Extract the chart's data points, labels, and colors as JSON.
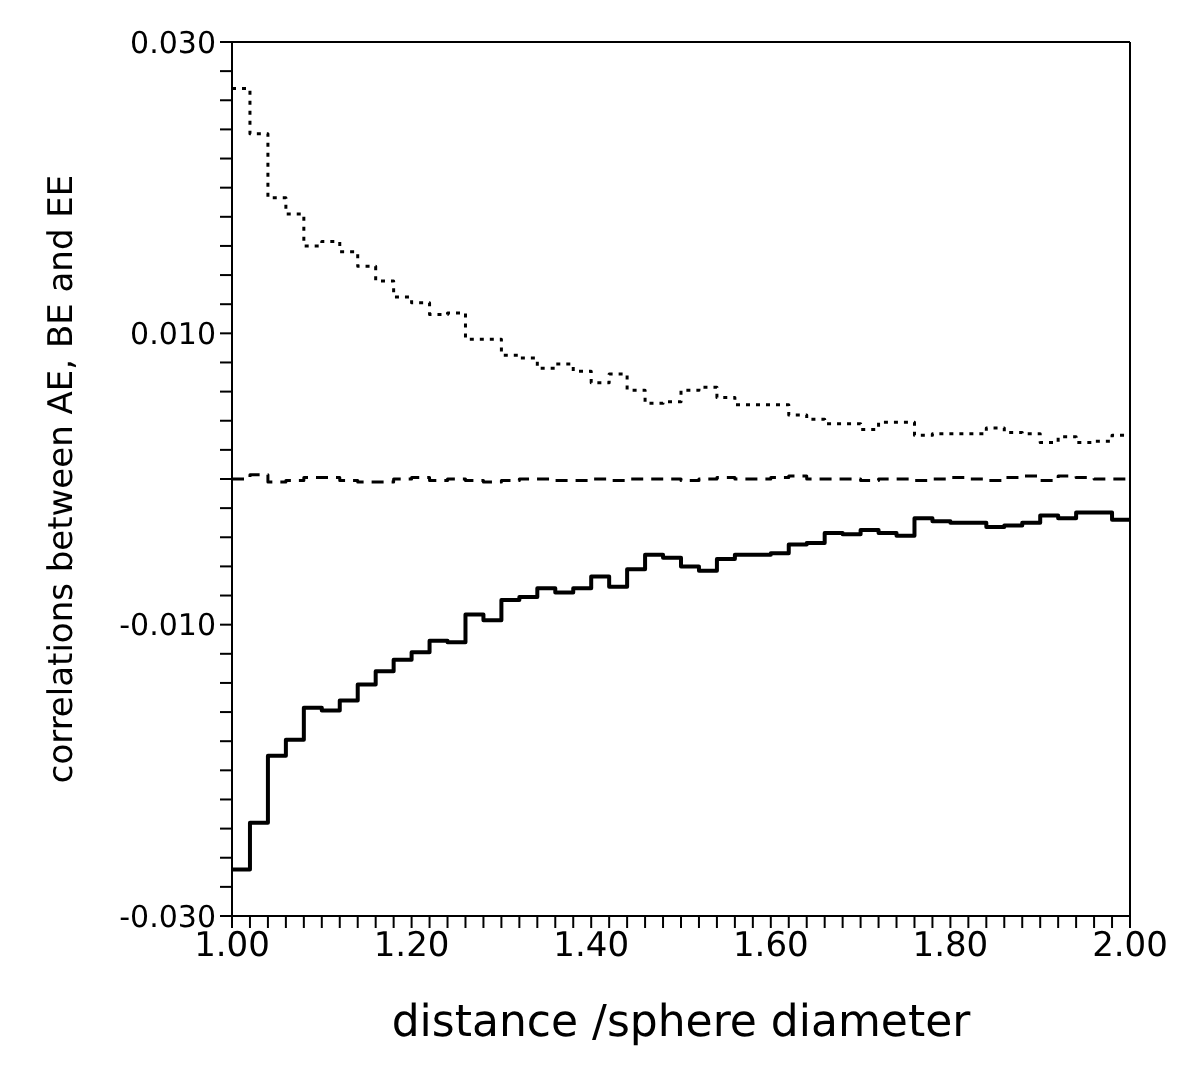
{
  "chart_data": {
    "type": "step",
    "xlabel": "distance /sphere diameter",
    "ylabel": "correlations between  AE, BE and EE",
    "x": [
      1.0,
      1.02,
      1.04,
      1.06,
      1.08,
      1.1,
      1.12,
      1.14,
      1.16,
      1.18,
      1.2,
      1.22,
      1.24,
      1.26,
      1.28,
      1.3,
      1.32,
      1.34,
      1.36,
      1.38,
      1.4,
      1.42,
      1.44,
      1.46,
      1.48,
      1.5,
      1.52,
      1.54,
      1.56,
      1.58,
      1.6,
      1.62,
      1.64,
      1.66,
      1.68,
      1.7,
      1.72,
      1.74,
      1.76,
      1.78,
      1.8,
      1.82,
      1.84,
      1.86,
      1.88,
      1.9,
      1.92,
      1.94,
      1.96,
      1.98,
      2.0
    ],
    "series": [
      {
        "color": "#000000",
        "line_style": "dotted",
        "values": [
          0.0268,
          0.0237,
          0.0193,
          0.0182,
          0.016,
          0.0163,
          0.0156,
          0.0146,
          0.0136,
          0.0125,
          0.0121,
          0.0113,
          0.0114,
          0.0096,
          0.0096,
          0.0085,
          0.0083,
          0.0076,
          0.0079,
          0.0074,
          0.0066,
          0.0072,
          0.0061,
          0.0052,
          0.0053,
          0.0061,
          0.0063,
          0.0056,
          0.0051,
          0.0051,
          0.0051,
          0.0044,
          0.0041,
          0.0038,
          0.0038,
          0.0034,
          0.0039,
          0.0039,
          0.003,
          0.0031,
          0.0031,
          0.0031,
          0.0035,
          0.0032,
          0.0031,
          0.0025,
          0.0029,
          0.0025,
          0.0026,
          0.003,
          0.003
        ]
      },
      {
        "color": "#000000",
        "line_style": "dashed",
        "values": [
          0.0,
          0.0003,
          -0.0002,
          -0.0001,
          0.0001,
          0.0001,
          -0.0001,
          -0.0002,
          -0.0002,
          0.0,
          0.0001,
          -0.0001,
          0.0,
          -0.0001,
          -0.0002,
          -0.0001,
          0.0,
          0.0,
          -0.0001,
          -0.0001,
          0.0,
          -0.0001,
          0.0,
          0.0,
          0.0,
          -0.0001,
          0.0,
          0.0001,
          0.0,
          0.0,
          0.0001,
          0.0002,
          0.0,
          0.0,
          0.0,
          -0.0001,
          0.0,
          0.0,
          -0.0001,
          0.0,
          0.0001,
          0.0,
          -0.0001,
          0.0001,
          0.0002,
          -0.0001,
          0.0002,
          0.0001,
          0.0,
          0.0,
          0.0
        ]
      },
      {
        "color": "#000000",
        "line_style": "solid",
        "values": [
          -0.0268,
          -0.0236,
          -0.019,
          -0.0179,
          -0.0157,
          -0.0159,
          -0.0152,
          -0.0141,
          -0.0132,
          -0.0124,
          -0.0119,
          -0.0111,
          -0.0112,
          -0.0093,
          -0.0097,
          -0.0083,
          -0.0081,
          -0.0075,
          -0.0078,
          -0.0075,
          -0.0067,
          -0.0074,
          -0.0062,
          -0.0052,
          -0.0054,
          -0.006,
          -0.0063,
          -0.0055,
          -0.0052,
          -0.0052,
          -0.0051,
          -0.0045,
          -0.0044,
          -0.0037,
          -0.0038,
          -0.0035,
          -0.0037,
          -0.0039,
          -0.0027,
          -0.0029,
          -0.003,
          -0.003,
          -0.0033,
          -0.0032,
          -0.003,
          -0.0025,
          -0.0027,
          -0.0023,
          -0.0023,
          -0.0028,
          -0.0028
        ]
      }
    ],
    "xlim": [
      1.0,
      2.0
    ],
    "xticks": [
      {
        "value": 1.0,
        "label": "1.00"
      },
      {
        "value": 1.02,
        "label": null
      },
      {
        "value": 1.04,
        "label": null
      },
      {
        "value": 1.06,
        "label": null
      },
      {
        "value": 1.08,
        "label": null
      },
      {
        "value": 1.1,
        "label": null
      },
      {
        "value": 1.12,
        "label": null
      },
      {
        "value": 1.14,
        "label": null
      },
      {
        "value": 1.16,
        "label": null
      },
      {
        "value": 1.18,
        "label": null
      },
      {
        "value": 1.2,
        "label": "1.20"
      },
      {
        "value": 1.22,
        "label": null
      },
      {
        "value": 1.24,
        "label": null
      },
      {
        "value": 1.26,
        "label": null
      },
      {
        "value": 1.28,
        "label": null
      },
      {
        "value": 1.3,
        "label": null
      },
      {
        "value": 1.32,
        "label": null
      },
      {
        "value": 1.34,
        "label": null
      },
      {
        "value": 1.36,
        "label": null
      },
      {
        "value": 1.38,
        "label": null
      },
      {
        "value": 1.4,
        "label": "1.40"
      },
      {
        "value": 1.42,
        "label": null
      },
      {
        "value": 1.44,
        "label": null
      },
      {
        "value": 1.46,
        "label": null
      },
      {
        "value": 1.48,
        "label": null
      },
      {
        "value": 1.5,
        "label": null
      },
      {
        "value": 1.52,
        "label": null
      },
      {
        "value": 1.54,
        "label": null
      },
      {
        "value": 1.56,
        "label": null
      },
      {
        "value": 1.58,
        "label": null
      },
      {
        "value": 1.6,
        "label": "1.60"
      },
      {
        "value": 1.62,
        "label": null
      },
      {
        "value": 1.64,
        "label": null
      },
      {
        "value": 1.66,
        "label": null
      },
      {
        "value": 1.68,
        "label": null
      },
      {
        "value": 1.7,
        "label": null
      },
      {
        "value": 1.72,
        "label": null
      },
      {
        "value": 1.74,
        "label": null
      },
      {
        "value": 1.76,
        "label": null
      },
      {
        "value": 1.78,
        "label": null
      },
      {
        "value": 1.8,
        "label": "1.80"
      },
      {
        "value": 1.82,
        "label": null
      },
      {
        "value": 1.84,
        "label": null
      },
      {
        "value": 1.86,
        "label": null
      },
      {
        "value": 1.88,
        "label": null
      },
      {
        "value": 1.9,
        "label": null
      },
      {
        "value": 1.92,
        "label": null
      },
      {
        "value": 1.94,
        "label": null
      },
      {
        "value": 1.96,
        "label": null
      },
      {
        "value": 1.98,
        "label": null
      },
      {
        "value": 2.0,
        "label": "2.00"
      }
    ],
    "ylim": [
      -0.03,
      0.03
    ],
    "yticks": [
      {
        "value": -0.03,
        "label": "-0.030"
      },
      {
        "value": -0.028,
        "label": null
      },
      {
        "value": -0.026,
        "label": null
      },
      {
        "value": -0.024,
        "label": null
      },
      {
        "value": -0.022,
        "label": null
      },
      {
        "value": -0.02,
        "label": null
      },
      {
        "value": -0.018,
        "label": null
      },
      {
        "value": -0.016,
        "label": null
      },
      {
        "value": -0.014,
        "label": null
      },
      {
        "value": -0.012,
        "label": null
      },
      {
        "value": -0.01,
        "label": "-0.010"
      },
      {
        "value": -0.008,
        "label": null
      },
      {
        "value": -0.006,
        "label": null
      },
      {
        "value": -0.004,
        "label": null
      },
      {
        "value": -0.002,
        "label": null
      },
      {
        "value": 0,
        "label": null
      },
      {
        "value": 0.002,
        "label": null
      },
      {
        "value": 0.004,
        "label": null
      },
      {
        "value": 0.006,
        "label": null
      },
      {
        "value": 0.008,
        "label": null
      },
      {
        "value": 0.01,
        "label": "0.010"
      },
      {
        "value": 0.012,
        "label": null
      },
      {
        "value": 0.014,
        "label": null
      },
      {
        "value": 0.016,
        "label": null
      },
      {
        "value": 0.018,
        "label": null
      },
      {
        "value": 0.02,
        "label": null
      },
      {
        "value": 0.022,
        "label": null
      },
      {
        "value": 0.024,
        "label": null
      },
      {
        "value": 0.026,
        "label": null
      },
      {
        "value": 0.028,
        "label": null
      },
      {
        "value": 0.03,
        "label": "0.030"
      }
    ]
  }
}
